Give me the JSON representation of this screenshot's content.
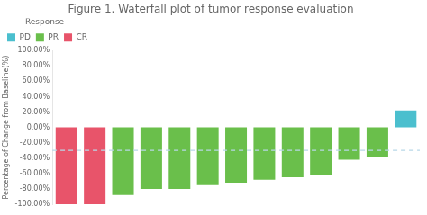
{
  "chart_data": {
    "type": "bar",
    "title": "Figure 1. Waterfall plot of tumor response evaluation",
    "y_label": "Percentage of Change from Baseline(%)",
    "categories": [
      null,
      null,
      null,
      null,
      null,
      null,
      null,
      null,
      null,
      null,
      null,
      null,
      null
    ],
    "values": [
      -100,
      -100,
      -88,
      -80,
      -80,
      -75,
      -72,
      -68,
      -65,
      -62,
      -42,
      -38,
      22
    ],
    "colors": [
      "#e8546a",
      "#e8546a",
      "#6abf4b",
      "#6abf4b",
      "#6abf4b",
      "#6abf4b",
      "#6abf4b",
      "#6abf4b",
      "#6abf4b",
      "#6abf4b",
      "#6abf4b",
      "#6abf4b",
      "#4bbfce"
    ],
    "ylim": [
      -100,
      100
    ],
    "yticks": [
      {
        "value": -100,
        "label": "-100.00%"
      },
      {
        "value": -80,
        "label": "-80.00%"
      },
      {
        "value": -60,
        "label": "-60.00%"
      },
      {
        "value": -40,
        "label": "-40.00%"
      },
      {
        "value": -20,
        "label": "-20.00%"
      },
      {
        "value": 0,
        "label": "0.00%"
      },
      {
        "value": 20,
        "label": "20.00%"
      },
      {
        "value": 40,
        "label": "40.00%"
      },
      {
        "value": 60,
        "label": "60.00%"
      },
      {
        "value": 80,
        "label": "80.00%"
      },
      {
        "value": 100,
        "label": "100.00%"
      }
    ],
    "grid": false,
    "tick_labels": "y",
    "legend": "upper left",
    "legend_title": "Response",
    "legend_entries": [
      {
        "name": "PD",
        "color": "#4bbfce"
      },
      {
        "name": "PR",
        "color": "#6abf4b"
      },
      {
        "name": "CR",
        "color": "#e8546a"
      }
    ],
    "reference_lines": [
      20,
      -30
    ],
    "reference_line_color": "#b8d8e8"
  }
}
